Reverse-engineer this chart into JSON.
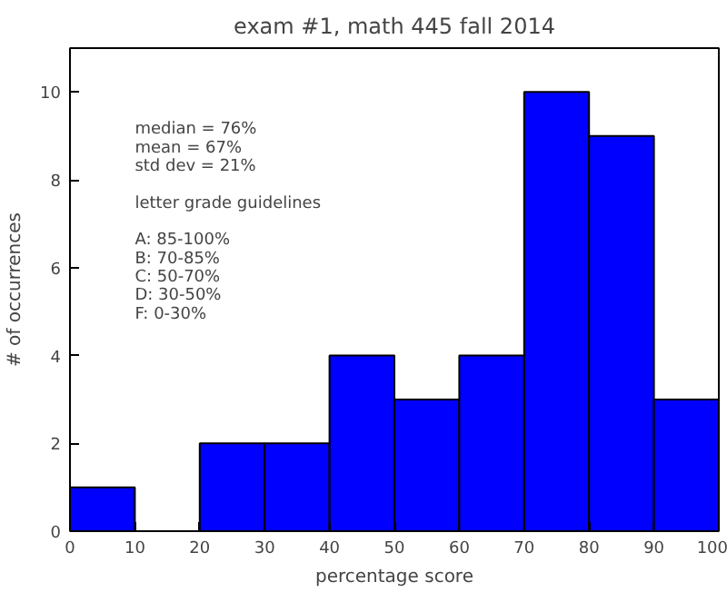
{
  "chart_data": {
    "type": "histogram",
    "title": "exam #1, math 445 fall 2014",
    "xlabel": "percentage score",
    "ylabel": "# of occurrences",
    "bins": [
      0,
      10,
      20,
      30,
      40,
      50,
      60,
      70,
      80,
      90,
      100
    ],
    "values": [
      1,
      0,
      2,
      2,
      4,
      3,
      4,
      10,
      9,
      3
    ],
    "color": "#0000ff",
    "xlim": [
      0,
      100
    ],
    "xticks": [
      0,
      10,
      20,
      30,
      40,
      50,
      60,
      70,
      80,
      90,
      100
    ],
    "ylim": [
      0,
      11
    ],
    "yticks": [
      0,
      2,
      4,
      6,
      8,
      10
    ],
    "grid": false,
    "annotations": [
      "median = 76%",
      "   mean = 67%",
      "std dev = 21%",
      "letter grade guidelines",
      "A: 85-100%",
      "B: 70-85%",
      "C: 50-70%",
      "D: 30-50%",
      "F:  0-30%"
    ]
  }
}
